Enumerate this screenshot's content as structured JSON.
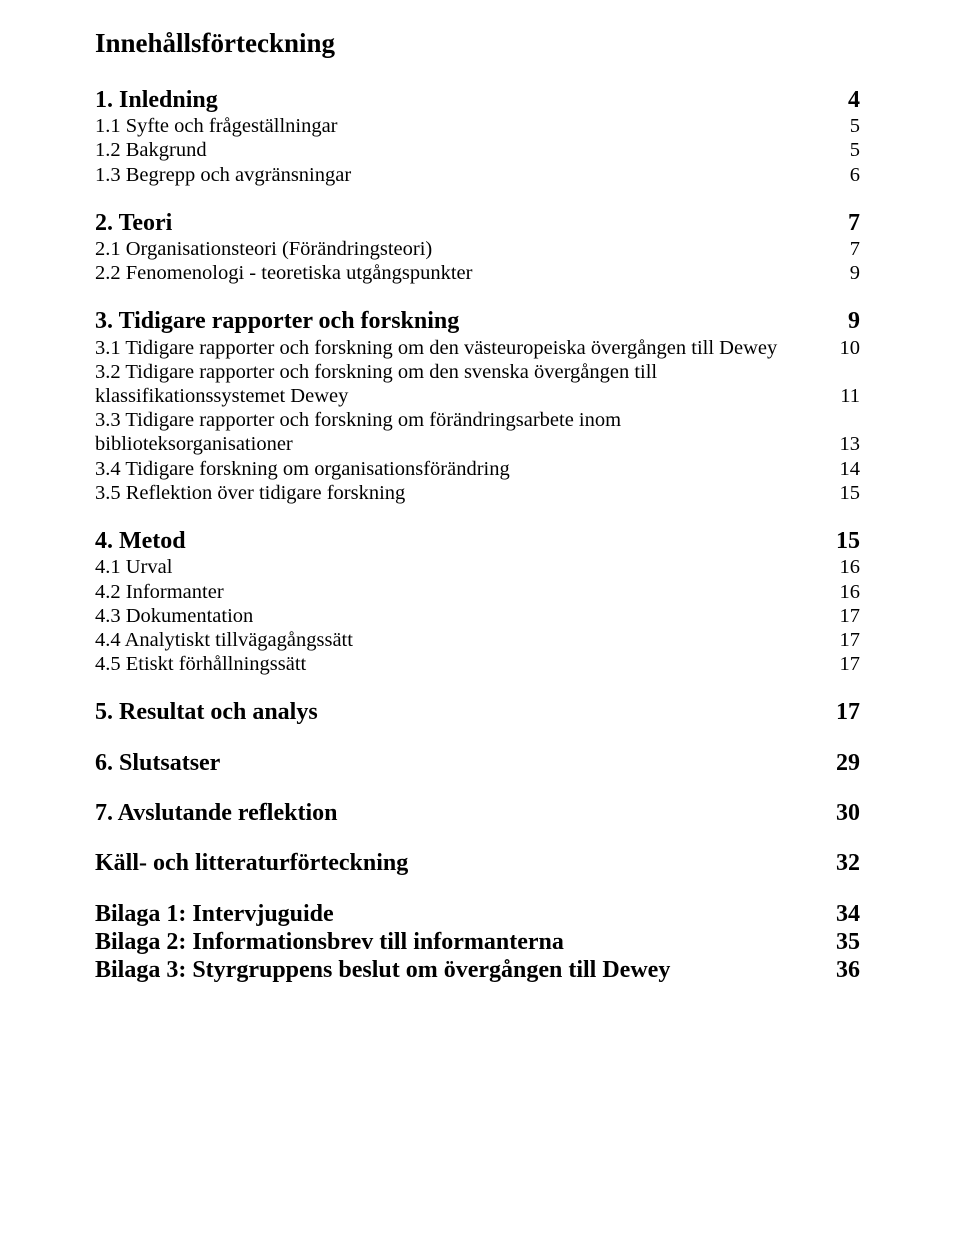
{
  "title": "Innehållsförteckning",
  "s1": {
    "h": "1. Inledning",
    "hp": "4",
    "e1": "1.1 Syfte och frågeställningar",
    "p1": "5",
    "e2": "1.2 Bakgrund",
    "p2": "5",
    "e3": "1.3 Begrepp och avgränsningar",
    "p3": "6"
  },
  "s2": {
    "h": "2. Teori",
    "hp": "7",
    "e1": "2.1 Organisationsteori (Förändringsteori)",
    "p1": "7",
    "e2": "2.2 Fenomenologi - teoretiska utgångspunkter",
    "p2": "9"
  },
  "s3": {
    "h": "3. Tidigare rapporter och forskning",
    "hp": "9",
    "e1": "3.1 Tidigare rapporter och forskning om den västeuropeiska övergången till Dewey",
    "p1": "10",
    "e2a": "3.2 Tidigare rapporter och forskning om den svenska övergången till",
    "e2b": "klassifikationssystemet Dewey",
    "p2": "11",
    "e3a": "3.3 Tidigare rapporter och forskning om förändringsarbete inom",
    "e3b": "biblioteksorganisationer",
    "p3": "13",
    "e4": "3.4 Tidigare forskning om organisationsförändring",
    "p4": "14",
    "e5": "3.5 Reflektion över tidigare forskning",
    "p5": "15"
  },
  "s4": {
    "h": "4. Metod",
    "hp": "15",
    "e1": "4.1 Urval",
    "p1": "16",
    "e2": "4.2 Informanter",
    "p2": "16",
    "e3": "4.3 Dokumentation",
    "p3": "17",
    "e4": "4.4 Analytiskt tillvägagångssätt",
    "p4": "17",
    "e5": "4.5 Etiskt förhållningssätt",
    "p5": "17"
  },
  "s5": {
    "h": "5. Resultat och analys",
    "hp": "17"
  },
  "s6": {
    "h": "6. Slutsatser",
    "hp": "29"
  },
  "s7": {
    "h": "7. Avslutande reflektion",
    "hp": "30"
  },
  "s8": {
    "h": "Käll- och litteraturförteckning",
    "hp": "32"
  },
  "b1": {
    "h": "Bilaga 1: Intervjuguide",
    "hp": "34"
  },
  "b2": {
    "h": "Bilaga 2: Informationsbrev till informanterna",
    "hp": "35"
  },
  "b3": {
    "h": "Bilaga 3: Styrgruppens beslut om övergången till Dewey",
    "hp": "36"
  }
}
